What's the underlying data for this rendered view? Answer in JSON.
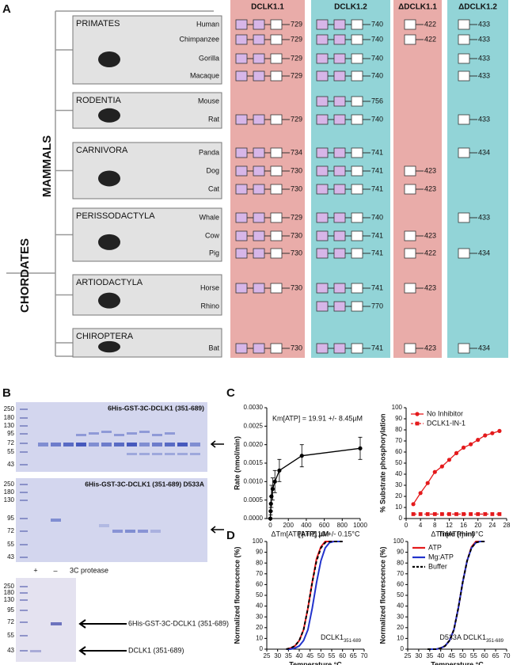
{
  "panel_a": {
    "label": "A",
    "clades": {
      "mammals": "MAMMALS",
      "chordates": "CHORDATES"
    },
    "columns": [
      {
        "name": "DCLK1.1",
        "color": "#e9aca9"
      },
      {
        "name": "DCLK1.2",
        "color": "#92d4d7"
      },
      {
        "name": "ΔDCLK1.1",
        "color": "#e9aca9"
      },
      {
        "name": "ΔDCLK1.2",
        "color": "#92d4d7"
      }
    ],
    "groups": [
      {
        "name": "PRIMATES",
        "species": [
          {
            "name": "Human",
            "lengths": [
              729,
              740,
              422,
              433
            ]
          },
          {
            "name": "Chimpanzee",
            "lengths": [
              729,
              740,
              422,
              433
            ]
          },
          {
            "name": "Gorilla",
            "lengths": [
              729,
              740,
              null,
              433
            ]
          },
          {
            "name": "Macaque",
            "lengths": [
              729,
              740,
              null,
              433
            ]
          }
        ]
      },
      {
        "name": "RODENTIA",
        "species": [
          {
            "name": "Mouse",
            "lengths": [
              null,
              756,
              null,
              null
            ]
          },
          {
            "name": "Rat",
            "lengths": [
              729,
              740,
              null,
              433
            ]
          }
        ]
      },
      {
        "name": "CARNIVORA",
        "species": [
          {
            "name": "Panda",
            "lengths": [
              734,
              741,
              null,
              434
            ]
          },
          {
            "name": "Dog",
            "lengths": [
              730,
              741,
              423,
              null
            ]
          },
          {
            "name": "Cat",
            "lengths": [
              730,
              741,
              423,
              null
            ]
          }
        ]
      },
      {
        "name": "PERISSODACTYLA",
        "species": [
          {
            "name": "Whale",
            "lengths": [
              729,
              740,
              null,
              433
            ]
          },
          {
            "name": "Cow",
            "lengths": [
              730,
              741,
              423,
              null
            ]
          },
          {
            "name": "Pig",
            "lengths": [
              730,
              741,
              422,
              434
            ]
          }
        ]
      },
      {
        "name": "ARTIODACTYLA",
        "species": [
          {
            "name": "Horse",
            "lengths": [
              730,
              741,
              423,
              null
            ]
          },
          {
            "name": "Rhino",
            "lengths": [
              null,
              770,
              null,
              null
            ]
          }
        ]
      },
      {
        "name": "CHIROPTERA",
        "species": [
          {
            "name": "Bat",
            "lengths": [
              730,
              741,
              423,
              434
            ]
          }
        ]
      }
    ]
  },
  "panel_b": {
    "label": "B",
    "gels": [
      {
        "title": "6His-GST-3C-DCLK1 (351-689)",
        "ladder": [
          250,
          180,
          130,
          95,
          72,
          55,
          43
        ]
      },
      {
        "title": "6His-GST-3C-DCLK1 (351-689) D533A",
        "ladder": [
          250,
          180,
          130,
          95,
          72,
          55,
          43
        ]
      },
      {
        "ladder": [
          250,
          180,
          130,
          95,
          72,
          55,
          43
        ]
      }
    ],
    "protease_lanes": [
      "+",
      "–"
    ],
    "protease_text": "3C protease",
    "bands": [
      "6His-GST-3C-DCLK1 (351-689)",
      "DCLK1 (351-689)"
    ]
  },
  "panel_c": {
    "label": "C"
  },
  "panel_d": {
    "label": "D"
  },
  "chart_data": [
    {
      "type": "line",
      "title": "Km[ATP] = 19.91 +/- 8.45µM",
      "x_label": "[ATP] µM",
      "y_label": "Rate (nmol/min)",
      "x": [
        0,
        3,
        6,
        12,
        25,
        50,
        100,
        350,
        1000
      ],
      "series": [
        {
          "color": "#000000",
          "marker": "circle",
          "values": [
            0.0,
            0.0002,
            0.0004,
            0.0006,
            0.0008,
            0.001,
            0.0013,
            0.0017,
            0.0019
          ],
          "errors": [
            0.0,
            0.0001,
            0.0002,
            0.0003,
            0.0003,
            0.0003,
            0.0003,
            0.0003,
            0.0003
          ]
        }
      ],
      "xlim": [
        -40,
        1000
      ],
      "ylim": [
        0,
        0.003
      ],
      "xticks": [
        0,
        200,
        400,
        600,
        800,
        1000
      ],
      "yticks": [
        {
          "value": 0,
          "label": "0.0000"
        },
        {
          "value": 0.0005,
          "label": "0.0005"
        },
        {
          "value": 0.001,
          "label": "0.0010"
        },
        {
          "value": 0.0015,
          "label": "0.0015"
        },
        {
          "value": 0.002,
          "label": "0.0020"
        },
        {
          "value": 0.0025,
          "label": "0.0025"
        },
        {
          "value": 0.003,
          "label": "0.0030"
        }
      ]
    },
    {
      "type": "line",
      "x_label": "Time (min)",
      "y_label": "% Substrate phosphorylation",
      "x": [
        2,
        4,
        6,
        8,
        10,
        12,
        14,
        16,
        18,
        20,
        22,
        24,
        26
      ],
      "series": [
        {
          "name": "No Inhibitor",
          "color": "#e41a1c",
          "marker": "circle",
          "values": [
            13,
            23,
            32,
            42,
            47,
            53,
            59,
            64,
            67,
            71,
            75,
            77,
            79
          ]
        },
        {
          "name": "DCLK1-IN-1",
          "color": "#e41a1c",
          "marker": "square",
          "dash": true,
          "values": [
            4,
            4,
            4,
            4,
            4,
            4,
            4,
            4,
            4,
            4,
            4,
            4,
            4
          ]
        }
      ],
      "legend": "upper left",
      "xlim": [
        0,
        28
      ],
      "ylim": [
        0,
        100
      ],
      "xticks": [
        0,
        4,
        8,
        12,
        16,
        20,
        24,
        28
      ],
      "yticks": [
        0,
        10,
        20,
        30,
        40,
        50,
        60,
        70,
        80,
        90,
        100
      ]
    },
    {
      "type": "line",
      "title": "ΔTm[ATP] = 2.10 +/- 0.15°C",
      "x_label": "Temperature °C",
      "y_label": "Normalized flourescence (%)",
      "annotation": {
        "text": "DCLK1",
        "sub": "351-689"
      },
      "x": [
        34,
        36,
        38,
        40,
        42,
        44,
        46,
        48,
        50,
        52,
        54,
        56,
        58,
        60
      ],
      "series": [
        {
          "color": "#e41a1c",
          "values": [
            0,
            1,
            3,
            8,
            18,
            38,
            62,
            84,
            95,
            100,
            100,
            100,
            100,
            100
          ]
        },
        {
          "color": "#2233cc",
          "values": [
            0,
            0,
            1,
            3,
            8,
            18,
            38,
            62,
            82,
            94,
            99,
            100,
            100,
            100
          ]
        },
        {
          "color": "#000000",
          "dash": true,
          "values": [
            0,
            1,
            3,
            8,
            18,
            38,
            62,
            82,
            94,
            99,
            100,
            100,
            100,
            100
          ]
        }
      ],
      "xlim": [
        25,
        70
      ],
      "ylim": [
        0,
        100
      ],
      "xticks": [
        25,
        30,
        35,
        40,
        45,
        50,
        55,
        60,
        65,
        70
      ],
      "yticks": [
        0,
        10,
        20,
        30,
        40,
        50,
        60,
        70,
        80,
        90,
        100
      ]
    },
    {
      "type": "line",
      "title": "ΔTm[ATP] = 0°C",
      "x_label": "Temperature °C",
      "y_label": "Normalized flourescence (%)",
      "annotation": {
        "text": "D533A DCLK1",
        "sub": "351-689"
      },
      "x": [
        34,
        36,
        38,
        40,
        42,
        44,
        46,
        48,
        50,
        52,
        54,
        56,
        58,
        60
      ],
      "series": [
        {
          "name": "ATP",
          "color": "#e41a1c",
          "values": [
            0,
            0,
            0,
            1,
            3,
            8,
            18,
            38,
            62,
            82,
            95,
            100,
            100,
            100
          ]
        },
        {
          "name": "Mg:ATP",
          "color": "#2233cc",
          "values": [
            0,
            0,
            0,
            1,
            3,
            8,
            18,
            38,
            62,
            82,
            94,
            99,
            100,
            100
          ]
        },
        {
          "name": "Buffer",
          "color": "#000000",
          "dash": true,
          "values": [
            0,
            0,
            0,
            1,
            3,
            8,
            18,
            38,
            62,
            82,
            94,
            99,
            100,
            100
          ]
        }
      ],
      "legend": "upper left",
      "xlim": [
        25,
        70
      ],
      "ylim": [
        0,
        100
      ],
      "xticks": [
        25,
        30,
        35,
        40,
        45,
        50,
        55,
        60,
        65,
        70
      ],
      "yticks": [
        0,
        10,
        20,
        30,
        40,
        50,
        60,
        70,
        80,
        90,
        100
      ]
    }
  ]
}
